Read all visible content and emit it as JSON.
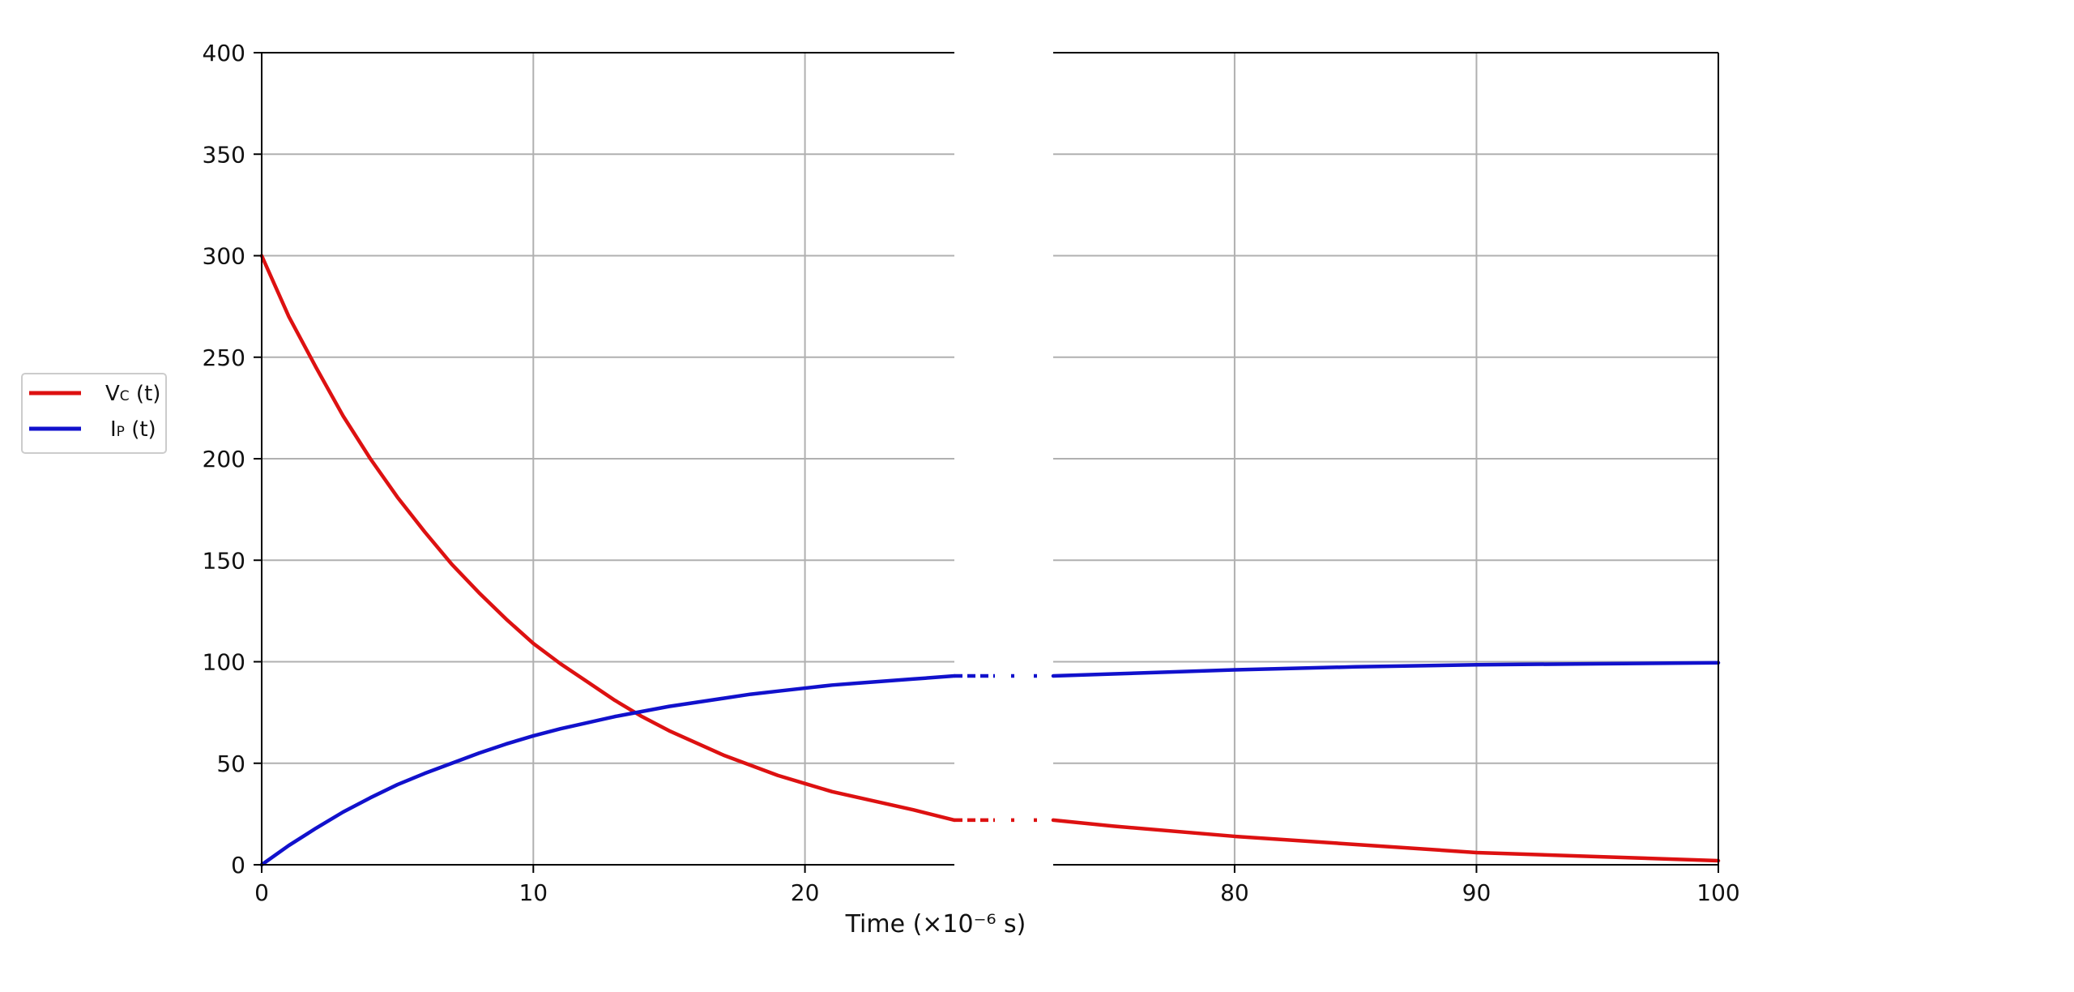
{
  "chart_data": {
    "type": "line",
    "xlabel": "Time (×10⁻⁶ s)",
    "ylim": [
      0,
      400
    ],
    "y_ticks": [
      "0",
      "50",
      "100",
      "150",
      "200",
      "250",
      "300",
      "350",
      "400"
    ],
    "y_tick_values": [
      0,
      50,
      100,
      150,
      200,
      250,
      300,
      350,
      400
    ],
    "broken_x_axis": true,
    "segments": [
      {
        "xlim": [
          0,
          25.5
        ],
        "x_ticks": [
          "0",
          "10",
          "20"
        ],
        "x_tick_values": [
          0,
          10,
          20
        ]
      },
      {
        "xlim": [
          72.5,
          100
        ],
        "x_ticks": [
          "80",
          "90",
          "100"
        ],
        "x_tick_values": [
          80,
          90,
          100
        ]
      }
    ],
    "grid": true,
    "legend_position": "left, outside plot",
    "series": [
      {
        "name_main": "V",
        "name_sub": "C",
        "name_suffix": " (t)",
        "color": "#dd1111",
        "x": [
          0,
          1,
          2,
          3,
          4,
          5,
          6,
          7,
          8,
          9,
          10,
          11,
          12,
          13,
          14,
          15,
          16,
          17,
          18,
          19,
          20,
          21,
          22,
          23,
          24,
          25.5,
          72.5,
          75,
          80,
          85,
          90,
          95,
          100
        ],
        "values": [
          300,
          270,
          245,
          221,
          200,
          181,
          164,
          148,
          134,
          121,
          109,
          99,
          90,
          81,
          73,
          66,
          60,
          54,
          49,
          44,
          40,
          36,
          33,
          30,
          27,
          22,
          22,
          19,
          14,
          10,
          6,
          4,
          2
        ]
      },
      {
        "name_main": "I",
        "name_sub": "P",
        "name_suffix": " (t)",
        "color": "#1111cc",
        "x": [
          0,
          1,
          2,
          3,
          4,
          5,
          6,
          7,
          8,
          9,
          10,
          11,
          12,
          13,
          14,
          15,
          16,
          17,
          18,
          19,
          20,
          21,
          22,
          23,
          24,
          25.5,
          72.5,
          75,
          80,
          85,
          90,
          95,
          100
        ],
        "values": [
          0,
          9.5,
          18,
          26,
          33,
          39.5,
          45,
          50,
          55,
          59.5,
          63.5,
          67,
          70,
          73,
          75.5,
          78,
          80,
          82,
          84,
          85.5,
          87,
          88.5,
          89.5,
          90.5,
          91.5,
          93,
          93,
          94,
          96,
          97.5,
          98.5,
          99,
          99.5
        ]
      }
    ]
  }
}
